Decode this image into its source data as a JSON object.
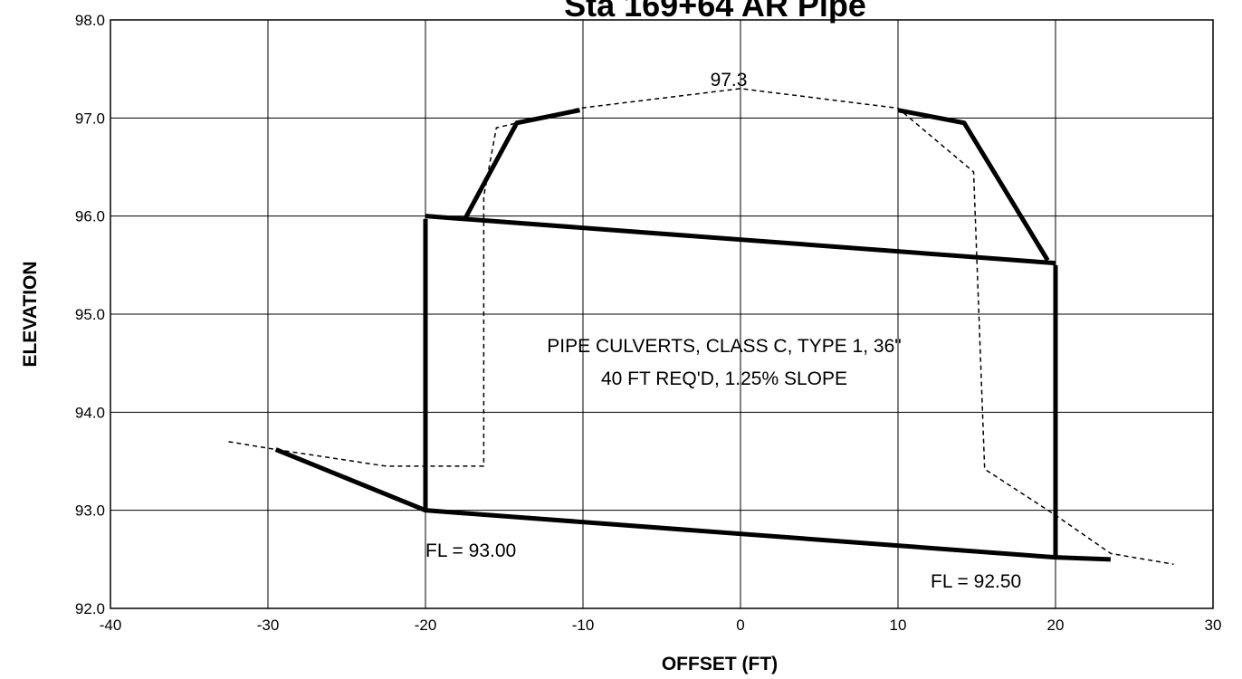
{
  "chart_data": {
    "type": "line",
    "title": "Sta 169+64 AR Pipe",
    "x_label": "OFFSET (FT)",
    "y_label": "ELEVATION",
    "annotations": [
      "97.3",
      "PIPE CULVERTS, CLASS C, TYPE 1, 36\"",
      "40 FT REQ'D, 1.25% SLOPE",
      "FL = 93.00",
      "FL = 92.50"
    ],
    "xlim": [
      -40,
      30
    ],
    "xticks": [
      -40,
      -30,
      -20,
      -10,
      0,
      10,
      20,
      30
    ],
    "ylim": [
      92,
      98
    ],
    "yticks": [
      {
        "value": 92,
        "label": "92.0"
      },
      {
        "value": 93,
        "label": "93.0"
      },
      {
        "value": 94,
        "label": "94.0"
      },
      {
        "value": 95,
        "label": "95.0"
      },
      {
        "value": 96,
        "label": "96.0"
      },
      {
        "value": 97,
        "label": "97.0"
      },
      {
        "value": 98,
        "label": "98.0"
      }
    ],
    "grid": true,
    "series": [
      {
        "color": "#000000",
        "dashed": true,
        "width": 1.5,
        "x": [
          -32.5,
          -29.5,
          -22.5,
          -16.3,
          -16.3,
          -15.5,
          -10.2,
          0,
          10,
          14.8,
          15.5,
          20,
          23.5,
          27.5
        ],
        "values": [
          93.7,
          93.62,
          93.45,
          93.45,
          96.2,
          96.9,
          97.1,
          97.3,
          97.1,
          96.45,
          93.42,
          92.95,
          92.56,
          92.45
        ]
      },
      {
        "color": "#000000",
        "dashed": false,
        "width": 5,
        "x": [
          -29.5,
          -20,
          20,
          23.5,
          null,
          -20,
          -20,
          null,
          20,
          20,
          null,
          -20,
          20,
          null,
          -17.5,
          -14.2,
          -10.2,
          null,
          10,
          14.2,
          19.5
        ],
        "values": [
          93.62,
          93.0,
          92.52,
          92.5,
          null,
          93.0,
          95.97,
          null,
          92.52,
          95.5,
          null,
          96.0,
          95.52,
          null,
          95.97,
          96.95,
          97.08,
          null,
          97.08,
          96.95,
          95.55
        ]
      }
    ]
  }
}
